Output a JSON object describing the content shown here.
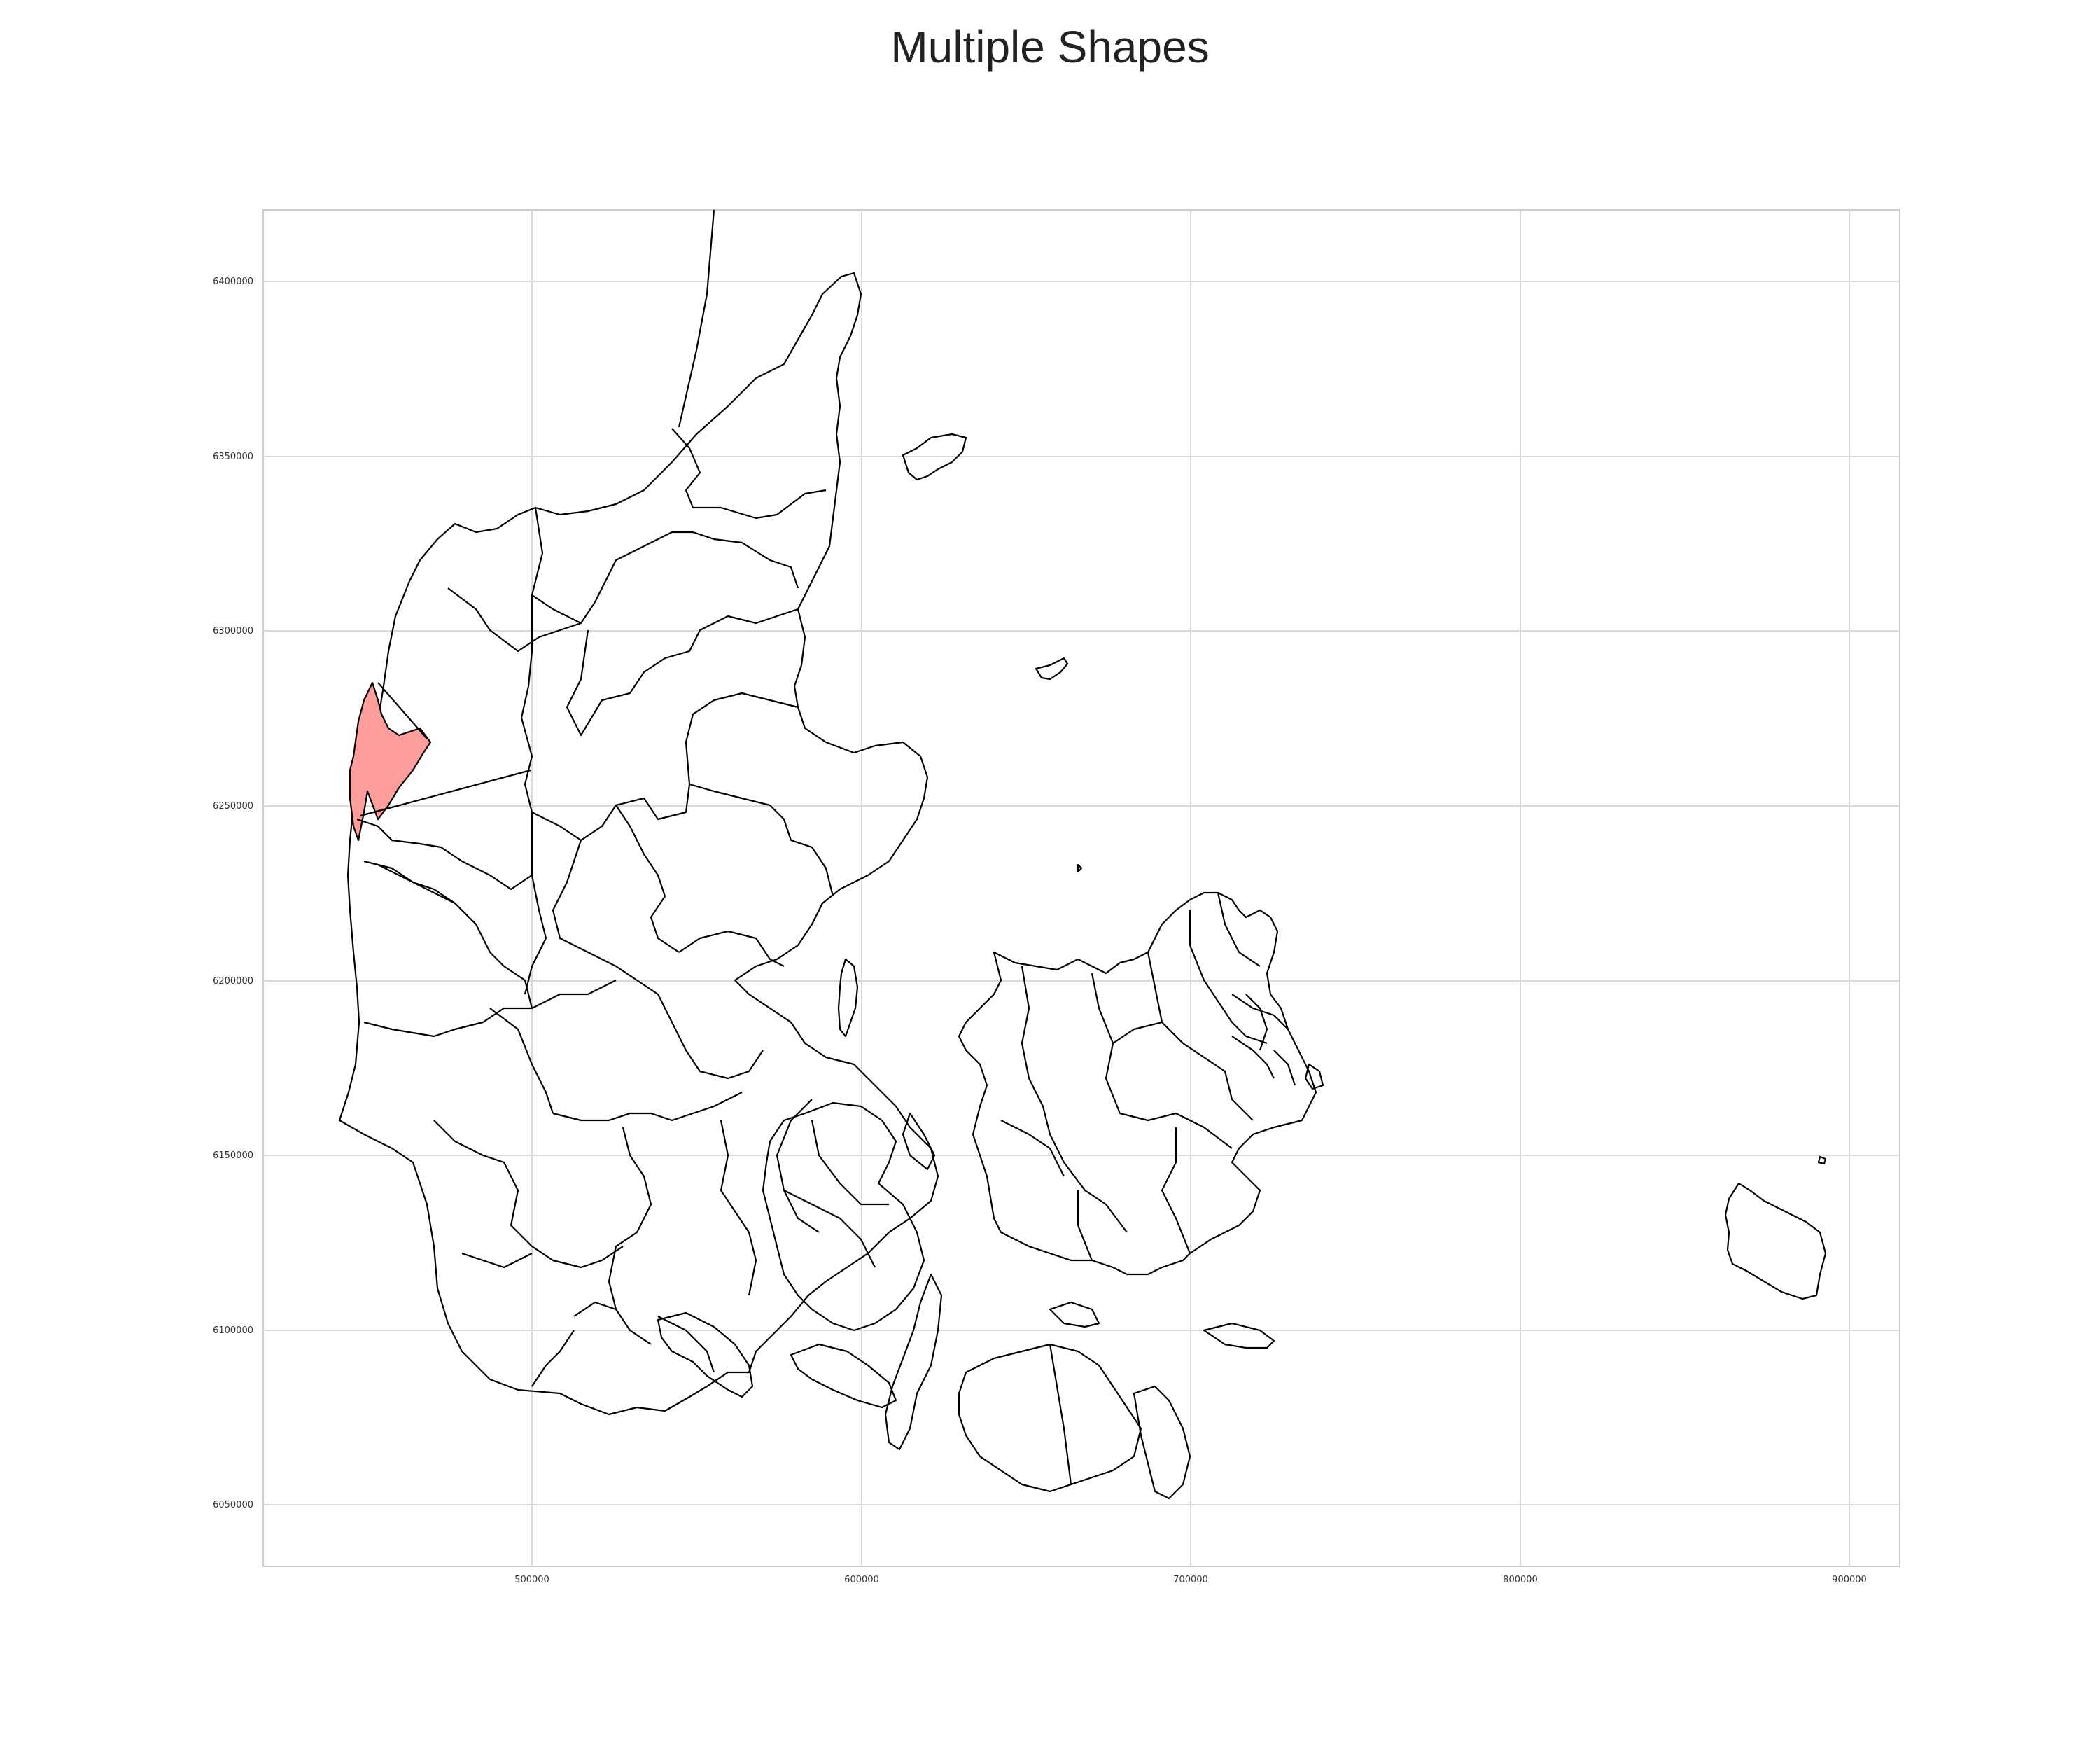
{
  "title": "Multiple Shapes",
  "map": {
    "x_ticks": [
      "500000",
      "600000",
      "700000",
      "800000",
      "900000"
    ],
    "y_ticks": [
      "6400000",
      "6350000",
      "6300000",
      "6250000",
      "6200000",
      "6150000",
      "6100000",
      "6050000"
    ],
    "grid": true,
    "highlighted_region_color": "#ff9c9c",
    "outline_color": "#000000"
  }
}
